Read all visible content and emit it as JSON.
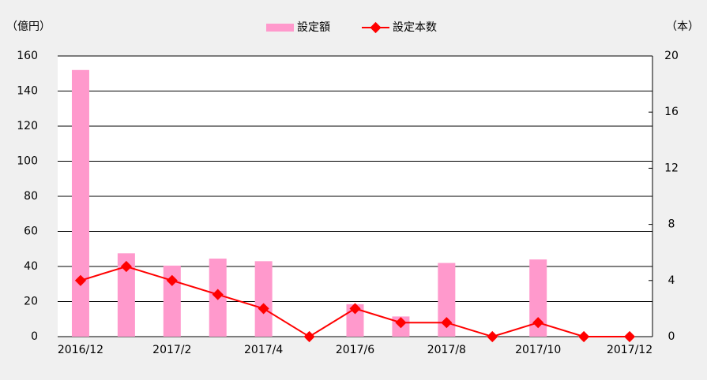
{
  "chart_data": {
    "type": "bar",
    "categories": [
      "2016/12",
      null,
      "2017/2",
      null,
      "2017/4",
      null,
      "2017/6",
      null,
      "2017/8",
      null,
      "2017/10",
      null,
      "2017/12"
    ],
    "series": [
      {
        "name": "設定額",
        "type": "bar",
        "color": "#ff99cc",
        "values": [
          152,
          47.5,
          40.5,
          44.5,
          43,
          0,
          18.5,
          11.5,
          42,
          0,
          44,
          0,
          0
        ]
      },
      {
        "name": "設定本数",
        "type": "line",
        "axis": "y2",
        "color": "#ff0000",
        "values": [
          4,
          5,
          4,
          3,
          2,
          0,
          2,
          1,
          1,
          0,
          1,
          0,
          0
        ]
      }
    ],
    "ylabel": "（億円）",
    "y2label": "（本）",
    "ylim": [
      0,
      160
    ],
    "yticks": [
      0,
      20,
      40,
      60,
      80,
      100,
      120,
      140,
      160
    ],
    "y2lim": [
      0,
      20
    ],
    "y2ticks": [
      0,
      4,
      8,
      12,
      16,
      20
    ],
    "grid": true,
    "legend": "top"
  }
}
